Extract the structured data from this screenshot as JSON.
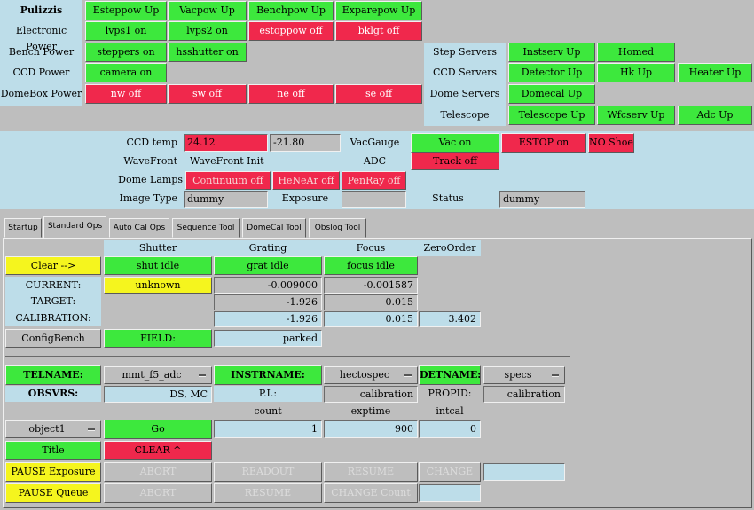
{
  "top": {
    "pulizzis": {
      "label": "Pulizzis",
      "buttons": [
        "Esteppow Up",
        "Vacpow Up",
        "Benchpow Up",
        "Exparepow Up"
      ]
    },
    "electronic_power": {
      "label": "Electronic Power",
      "buttons": [
        "lvps1 on",
        "lvps2 on",
        "estoppow off",
        "bklgt off"
      ]
    },
    "bench_power": {
      "label": "Bench Power",
      "buttons": [
        "steppers on",
        "hsshutter on"
      ]
    },
    "ccd_power": {
      "label": "CCD Power",
      "buttons": [
        "camera on"
      ]
    },
    "domebox_power": {
      "label": "DomeBox Power",
      "buttons": [
        "nw off",
        "sw off",
        "ne off",
        "se off"
      ]
    },
    "step_servers": {
      "label": "Step Servers",
      "buttons": [
        "Instserv Up",
        "Homed"
      ]
    },
    "ccd_servers": {
      "label": "CCD Servers",
      "buttons": [
        "Detector Up",
        "Hk Up",
        "Heater Up"
      ]
    },
    "dome_servers": {
      "label": "Dome Servers",
      "buttons": [
        "Domecal Up"
      ]
    },
    "telescope": {
      "label": "Telescope",
      "buttons": [
        "Telescope Up",
        "Wfcserv Up",
        "Adc Up"
      ]
    }
  },
  "status": {
    "ccd_temp_label": "CCD temp",
    "ccd_temp_1": "24.12",
    "ccd_temp_2": "-21.80",
    "vacgauge_label": "VacGauge",
    "vac_on": "Vac on",
    "estop_on": "ESTOP on",
    "no_shoe": "NO Shoe !",
    "wavefront_label": "WaveFront",
    "wavefront_value": "WaveFront Init",
    "adc_label": "ADC",
    "track_off": "Track off",
    "dome_lamps_label": "Dome Lamps",
    "lamps": [
      "Continuum off",
      "HeNeAr off",
      "PenRay off"
    ],
    "image_type_label": "Image Type",
    "image_type_value": "dummy",
    "exposure_label": "Exposure",
    "status_label": "Status",
    "status_value": "dummy"
  },
  "tabs": [
    "Startup",
    "Standard Ops",
    "Auto Cal Ops",
    "Sequence Tool",
    "DomeCal Tool",
    "Obslog Tool"
  ],
  "ops": {
    "headers": [
      "Shutter",
      "Grating",
      "Focus",
      "ZeroOrder"
    ],
    "clear_button": "Clear -->",
    "shut_idle": "shut idle",
    "grat_idle": "grat idle",
    "focus_idle": "focus idle",
    "current_label": "CURRENT:",
    "current_shutter": "unknown",
    "current_grating": "-0.009000",
    "current_focus": "-0.001587",
    "target_label": "TARGET:",
    "target_grating": "-1.926",
    "target_focus": "0.015",
    "calibration_label": "CALIBRATION:",
    "cal_grating": "-1.926",
    "cal_focus": "0.015",
    "cal_zero": "3.402",
    "configbench": "ConfigBench",
    "field_label": "FIELD:",
    "field_value": "parked",
    "telname_label": "TELNAME:",
    "telname_value": "mmt_f5_adc",
    "instrname_label": "INSTRNAME:",
    "instrname_value": "hectospec",
    "detname_label": "DETNAME:",
    "detname_value": "specs",
    "obsvrs_label": "OBSVRS:",
    "obsvrs_value": "DS, MC",
    "pi_label": "P.I.:",
    "pi_value": "calibration",
    "propid_label": "PROPID:",
    "propid_value": "calibration",
    "count_label": "count",
    "exptime_label": "exptime",
    "intcal_label": "intcal",
    "object_value": "object1",
    "go": "Go",
    "count_value": "1",
    "exptime_value": "900",
    "intcal_value": "0",
    "title_button": "Title",
    "clear_caret": "CLEAR ^",
    "pause_exposure": "PAUSE Exposure",
    "abort1": "ABORT",
    "readout": "READOUT",
    "resume1": "RESUME",
    "change": "CHANGE",
    "pause_queue": "PAUSE Queue",
    "abort2": "ABORT",
    "resume2": "RESUME",
    "change_count": "CHANGE Count"
  }
}
